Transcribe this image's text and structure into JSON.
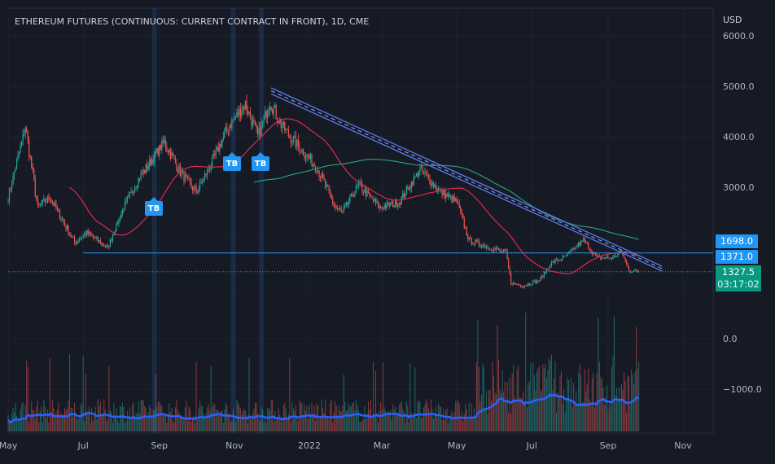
{
  "header": {
    "title": "ETHEREUM FUTURES (CONTINUOUS: CURRENT CONTRACT IN FRONT), 1D, CME",
    "currency": "USD"
  },
  "price_labels": {
    "level_1": "1698.0",
    "level_2": "1371.0",
    "last_price": "1327.5",
    "countdown": "03:17:02"
  },
  "signals": [
    {
      "label": "TB",
      "date": "2021-08-28"
    },
    {
      "label": "TB",
      "date": "2021-10-31"
    },
    {
      "label": "TB",
      "date": "2021-11-23"
    }
  ],
  "colors": {
    "up": "#26a69a",
    "down": "#ef5350",
    "ma_fast": "#e0294a",
    "ma_slow": "#2a9d74",
    "volume_ma": "#2962ff",
    "accent": "#2196f3",
    "last_price_bg": "#089981"
  },
  "chart_data": {
    "type": "candlestick",
    "title": "ETHEREUM FUTURES (CONTINUOUS: CURRENT CONTRACT IN FRONT), 1D, CME",
    "ylabel": "USD",
    "ylim": [
      -1500,
      6500
    ],
    "yticks": [
      "6000.0",
      "5000.0",
      "4000.0",
      "3000.0",
      "0.0",
      "−1000.0"
    ],
    "ytick_values": [
      6000,
      5000,
      4000,
      3000,
      0,
      -1000
    ],
    "xticks": [
      {
        "label": "May",
        "date": "2021-05-01"
      },
      {
        "label": "Jul",
        "date": "2021-07-01"
      },
      {
        "label": "Sep",
        "date": "2021-09-01"
      },
      {
        "label": "Nov",
        "date": "2021-11-01"
      },
      {
        "label": "2022",
        "date": "2022-01-01"
      },
      {
        "label": "Mar",
        "date": "2022-03-01"
      },
      {
        "label": "May",
        "date": "2022-05-01"
      },
      {
        "label": "Jul",
        "date": "2022-07-01"
      },
      {
        "label": "Sep",
        "date": "2022-09-01"
      },
      {
        "label": "Nov",
        "date": "2022-11-01"
      }
    ],
    "close_path": [
      [
        "2021-05-01",
        2800
      ],
      [
        "2021-05-15",
        4200
      ],
      [
        "2021-05-25",
        2600
      ],
      [
        "2021-06-04",
        2800
      ],
      [
        "2021-06-24",
        1900
      ],
      [
        "2021-07-04",
        2100
      ],
      [
        "2021-07-21",
        1800
      ],
      [
        "2021-08-03",
        2600
      ],
      [
        "2021-08-16",
        3200
      ],
      [
        "2021-09-05",
        3900
      ],
      [
        "2021-09-18",
        3300
      ],
      [
        "2021-10-01",
        2900
      ],
      [
        "2021-10-14",
        3500
      ],
      [
        "2021-10-27",
        4200
      ],
      [
        "2021-11-10",
        4650
      ],
      [
        "2021-11-20",
        4000
      ],
      [
        "2021-11-30",
        4700
      ],
      [
        "2021-12-10",
        4200
      ],
      [
        "2021-12-20",
        3900
      ],
      [
        "2022-01-07",
        3400
      ],
      [
        "2022-01-22",
        2600
      ],
      [
        "2022-01-28",
        2500
      ],
      [
        "2022-02-10",
        3050
      ],
      [
        "2022-02-27",
        2600
      ],
      [
        "2022-03-15",
        2700
      ],
      [
        "2022-04-01",
        3350
      ],
      [
        "2022-04-18",
        2900
      ],
      [
        "2022-05-01",
        2700
      ],
      [
        "2022-05-11",
        1950
      ],
      [
        "2022-05-28",
        1800
      ],
      [
        "2022-06-10",
        1700
      ],
      [
        "2022-06-14",
        1100
      ],
      [
        "2022-06-24",
        1050
      ],
      [
        "2022-07-07",
        1150
      ],
      [
        "2022-07-17",
        1500
      ],
      [
        "2022-07-27",
        1600
      ],
      [
        "2022-08-12",
        1950
      ],
      [
        "2022-08-23",
        1600
      ],
      [
        "2022-09-05",
        1600
      ],
      [
        "2022-09-12",
        1720
      ],
      [
        "2022-09-18",
        1350
      ],
      [
        "2022-09-26",
        1327.5
      ]
    ],
    "moving_averages": [
      {
        "name": "SMA 50",
        "period": 50
      },
      {
        "name": "SMA 200",
        "period": 200
      }
    ],
    "trendlines": [
      {
        "from": [
          "2021-12-01",
          4968
        ],
        "to": [
          "2022-10-15",
          1435
        ]
      },
      {
        "from": [
          "2021-12-01",
          4850
        ],
        "to": [
          "2022-10-15",
          1340
        ]
      }
    ],
    "horizontal_lines": [
      {
        "value": 1698,
        "from": "2021-07-01"
      },
      {
        "value": 1327.5,
        "style": "dotted"
      }
    ],
    "highlight_dates": [
      "2021-08-28",
      "2021-10-31",
      "2021-11-23"
    ]
  }
}
